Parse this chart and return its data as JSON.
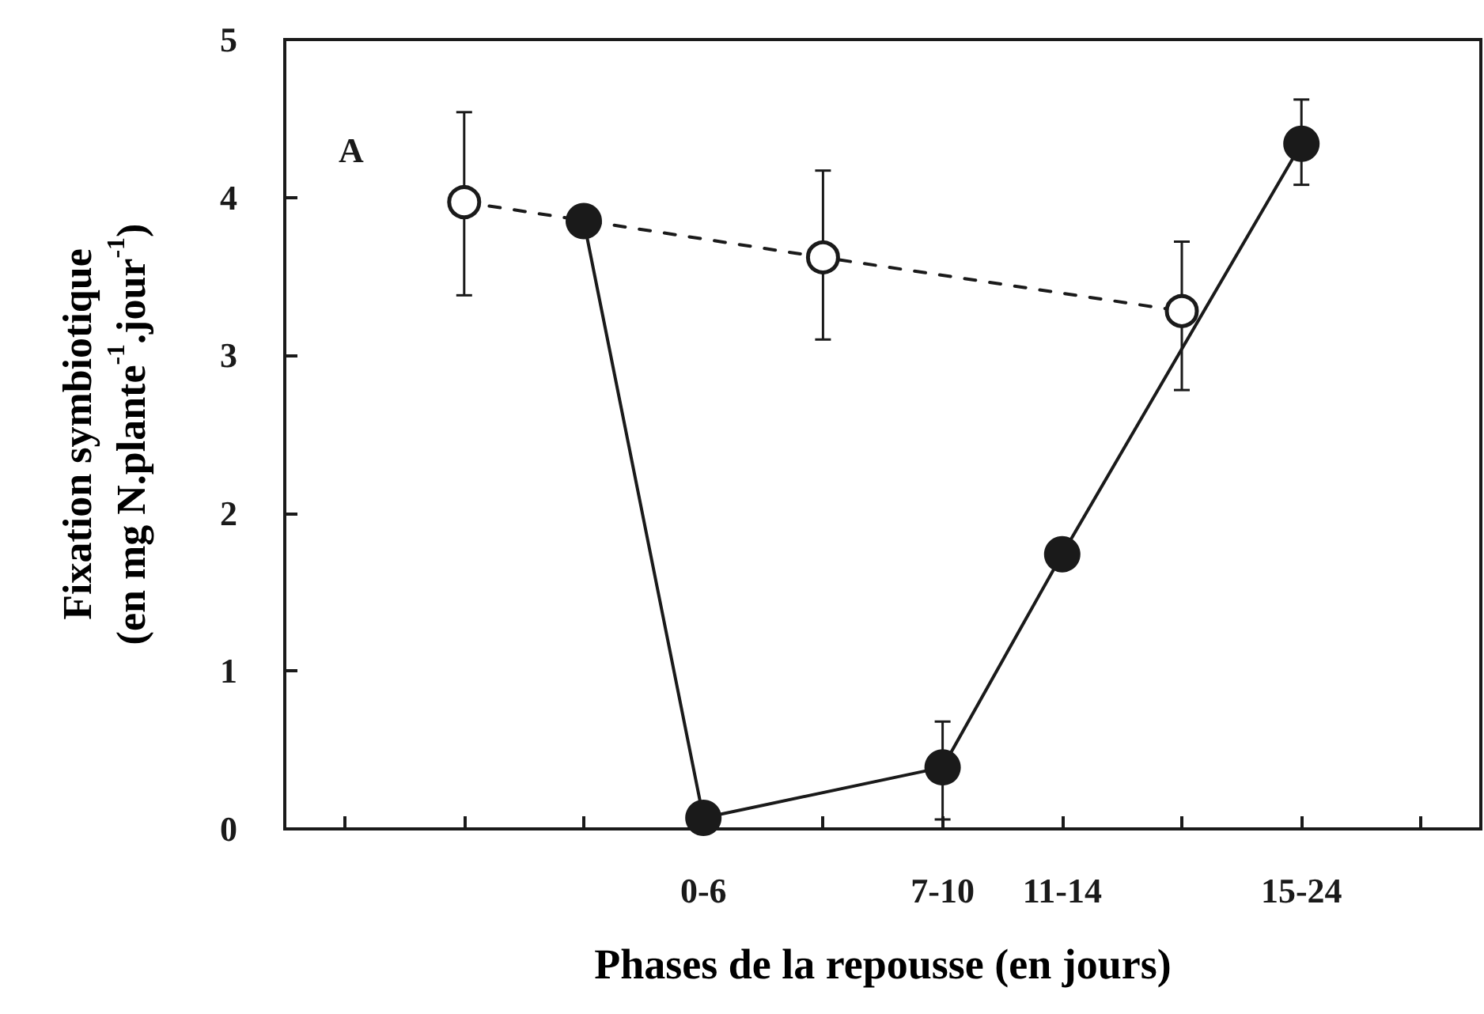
{
  "chart_data": {
    "type": "line",
    "xlabel": "Phases de la repousse (en jours)",
    "ylabel": "Fixation symbiotique\n(en mg N.plante$^{-1}$.jour$^{-1}$)",
    "annotations": [
      "A"
    ],
    "categories": [
      null,
      null,
      null,
      "0-6",
      null,
      "7-10",
      "11-14",
      null,
      "15-24",
      null
    ],
    "ylim": [
      0,
      5
    ],
    "yticks": [
      0,
      1,
      2,
      3,
      4,
      5
    ],
    "grid": false,
    "marker": "circle",
    "series": [
      {
        "color": "#1a1a1a",
        "line_style": "dashed",
        "values": [
          null,
          3.97,
          null,
          null,
          3.62,
          null,
          null,
          3.28,
          null,
          null
        ],
        "errors": [
          null,
          [
            3.38,
            4.54
          ],
          null,
          null,
          [
            3.1,
            4.17
          ],
          null,
          null,
          [
            2.78,
            3.72
          ],
          null,
          null
        ]
      },
      {
        "color": "#1a1a1a",
        "line_style": "solid",
        "values": [
          null,
          null,
          3.85,
          0.07,
          null,
          0.39,
          1.74,
          null,
          4.34,
          null
        ],
        "errors": [
          null,
          null,
          null,
          null,
          null,
          [
            0.06,
            0.68
          ],
          null,
          null,
          [
            4.08,
            4.62
          ],
          null
        ]
      }
    ]
  }
}
